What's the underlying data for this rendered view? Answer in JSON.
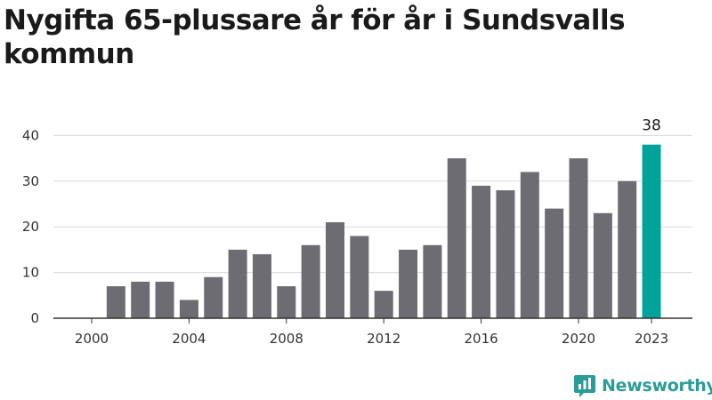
{
  "chart_data": {
    "type": "bar",
    "title": "Nygifta 65-plussare år för år i Sundsvalls kommun",
    "x": [
      2000,
      2001,
      2002,
      2003,
      2004,
      2005,
      2006,
      2007,
      2008,
      2009,
      2010,
      2011,
      2012,
      2013,
      2014,
      2015,
      2016,
      2017,
      2018,
      2019,
      2020,
      2021,
      2022,
      2023
    ],
    "values": [
      0,
      7,
      8,
      8,
      4,
      9,
      15,
      14,
      7,
      16,
      21,
      18,
      6,
      15,
      16,
      35,
      29,
      28,
      32,
      24,
      35,
      23,
      30,
      38
    ],
    "xticks": [
      2000,
      2004,
      2008,
      2012,
      2016,
      2020,
      2023
    ],
    "yticks": [
      0,
      10,
      20,
      30,
      40
    ],
    "ylim": [
      0,
      42
    ],
    "xlabel": "",
    "ylabel": "",
    "grid": "horizontal",
    "highlight": {
      "x": 2023,
      "label": "38"
    },
    "colors": {
      "bar": "#6d6c72",
      "highlight": "#00a39a",
      "grid": "#d9d9d9",
      "axis": "#333333"
    }
  },
  "brand": {
    "name": "Newsworthy",
    "icon": "newsworthy-logo-icon",
    "color": "#2b9c98"
  }
}
